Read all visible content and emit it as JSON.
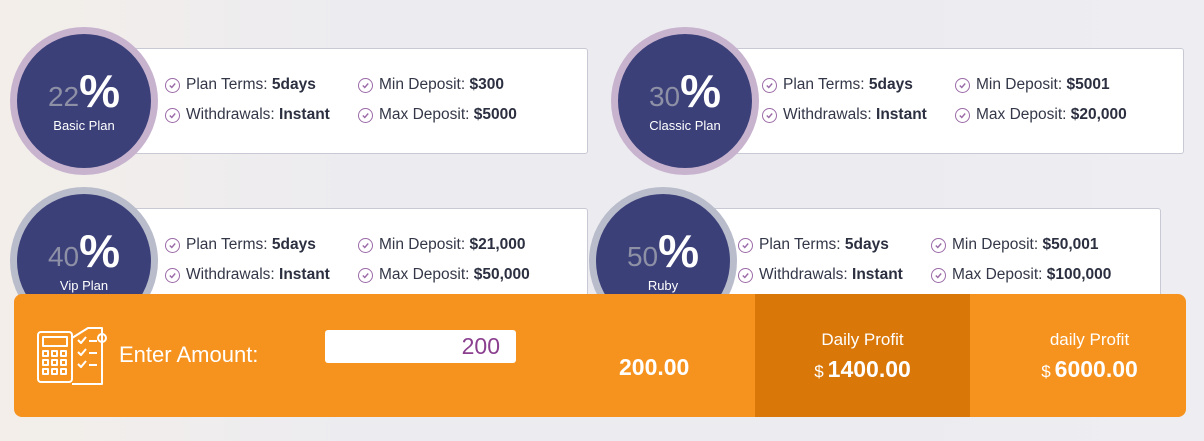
{
  "plans": [
    {
      "pct": "22",
      "sign": "%",
      "name": "Basic Plan",
      "terms_label": "Plan Terms:",
      "terms_value": "5days",
      "withdraw_label": "Withdrawals:",
      "withdraw_value": "Instant",
      "min_label": "Min Deposit:",
      "min_value": "$300",
      "max_label": "Max Deposit:",
      "max_value": "$5000"
    },
    {
      "pct": "30",
      "sign": "%",
      "name": "Classic Plan",
      "terms_label": "Plan Terms:",
      "terms_value": "5days",
      "withdraw_label": "Withdrawals:",
      "withdraw_value": "Instant",
      "min_label": "Min Deposit:",
      "min_value": "$5001",
      "max_label": "Max Deposit:",
      "max_value": "$20,000"
    },
    {
      "pct": "40",
      "sign": "%",
      "name": "Vip Plan",
      "terms_label": "Plan Terms:",
      "terms_value": "5days",
      "withdraw_label": "Withdrawals:",
      "withdraw_value": "Instant",
      "min_label": "Min Deposit:",
      "min_value": "$21,000",
      "max_label": "Max Deposit:",
      "max_value": "$50,000"
    },
    {
      "pct": "50",
      "sign": "%",
      "name": "Ruby",
      "terms_label": "Plan Terms:",
      "terms_value": "5days",
      "withdraw_label": "Withdrawals:",
      "withdraw_value": "Instant",
      "min_label": "Min Deposit:",
      "min_value": "$50,001",
      "max_label": "Max Deposit:",
      "max_value": "$100,000"
    }
  ],
  "calculator": {
    "icon": "calculator-checklist-icon",
    "enter_label": "Enter Amount:",
    "amount": "200",
    "total": "200.00",
    "daily_profit_1": {
      "label": "Daily Profit",
      "currency": "$",
      "value": "1400.00"
    },
    "daily_profit_2": {
      "label": "daily Profit",
      "currency": "$",
      "value": "6000.00"
    }
  },
  "colors": {
    "badge": "#3b4079",
    "accent_orange": "#f6931e",
    "accent_dark_orange": "#d97708",
    "check": "#9b6aa8"
  }
}
